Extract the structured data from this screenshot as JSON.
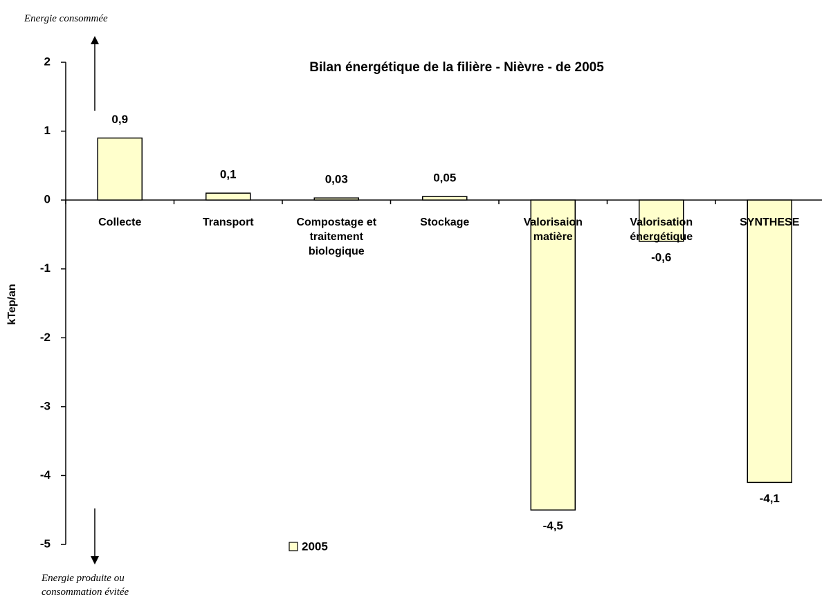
{
  "chart_data": {
    "type": "bar",
    "title": "Bilan énergétique de la filière  - Nièvre - de 2005",
    "y_label": "kTep/an",
    "annotations": [
      "Energie consommée",
      "Energie produite ou consommation évitée"
    ],
    "categories": [
      "Collecte",
      "Transport",
      "Compostage et traitement biologique",
      "Stockage",
      "Valorisaion matière",
      "Valorisation énergétique",
      "SYNTHESE"
    ],
    "series": [
      {
        "name": "2005",
        "color": "#ffffcc",
        "values": [
          0.9,
          0.1,
          0.03,
          0.05,
          -4.5,
          -0.6,
          -4.1
        ],
        "value_labels": [
          "0,9",
          "0,1",
          "0,03",
          "0,05",
          "-4,5",
          "-0,6",
          "-4,1"
        ]
      }
    ],
    "ylim": [
      -5,
      2
    ],
    "yticks": [
      -5,
      -4,
      -3,
      -2,
      -1,
      0,
      1,
      2
    ],
    "grid": false,
    "legend": "bottom"
  }
}
